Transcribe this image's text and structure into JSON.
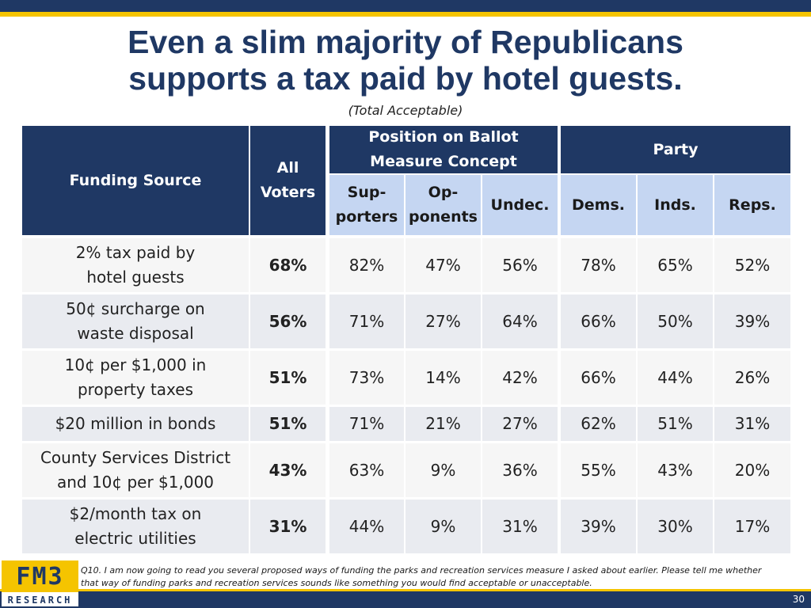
{
  "title_line1": "Even a slim majority of Republicans",
  "title_line2": "supports a tax paid by hotel guests.",
  "subtitle": "(Total Acceptable)",
  "colors": {
    "navy": "#1f3864",
    "gold": "#f5c400",
    "light_blue": "#c5d6f2"
  },
  "chart_data": {
    "type": "table",
    "headers": {
      "funding_source": "Funding Source",
      "all_voters_line1": "All",
      "all_voters_line2": "Voters",
      "group_position_line1": "Position on Ballot",
      "group_position_line2": "Measure Concept",
      "group_party": "Party",
      "supporters_line1": "Sup-",
      "supporters_line2": "porters",
      "opponents_line1": "Op-",
      "opponents_line2": "ponents",
      "undecided": "Undec.",
      "dems": "Dems.",
      "inds": "Inds.",
      "reps": "Reps."
    },
    "rows": [
      {
        "label_line1": "2% tax paid by",
        "label_line2": "hotel guests",
        "all": "68%",
        "supporters": "82%",
        "opponents": "47%",
        "undecided": "56%",
        "dems": "78%",
        "inds": "65%",
        "reps": "52%"
      },
      {
        "label_line1": "50¢ surcharge on",
        "label_line2": "waste disposal",
        "all": "56%",
        "supporters": "71%",
        "opponents": "27%",
        "undecided": "64%",
        "dems": "66%",
        "inds": "50%",
        "reps": "39%"
      },
      {
        "label_line1": "10¢ per $1,000 in",
        "label_line2": "property taxes",
        "all": "51%",
        "supporters": "73%",
        "opponents": "14%",
        "undecided": "42%",
        "dems": "66%",
        "inds": "44%",
        "reps": "26%"
      },
      {
        "label_line1": "$20 million in bonds",
        "label_line2": "",
        "all": "51%",
        "supporters": "71%",
        "opponents": "21%",
        "undecided": "27%",
        "dems": "62%",
        "inds": "51%",
        "reps": "31%"
      },
      {
        "label_line1": "County Services District",
        "label_line2": "and  10¢ per $1,000",
        "all": "43%",
        "supporters": "63%",
        "opponents": "9%",
        "undecided": "36%",
        "dems": "55%",
        "inds": "43%",
        "reps": "20%"
      },
      {
        "label_line1": "$2/month tax on",
        "label_line2": "electric utilities",
        "all": "31%",
        "supporters": "44%",
        "opponents": "9%",
        "undecided": "31%",
        "dems": "39%",
        "inds": "30%",
        "reps": "17%"
      }
    ]
  },
  "footnote_line1": "Q10. I am now going to read you several proposed ways of funding the parks and recreation services measure I asked about earlier.  Please tell me whether",
  "footnote_line2": "that way of funding parks and recreation services sounds like something you would find acceptable or unacceptable.",
  "logo_main": "FM3",
  "logo_sub": "RESEARCH",
  "page_number": "30"
}
